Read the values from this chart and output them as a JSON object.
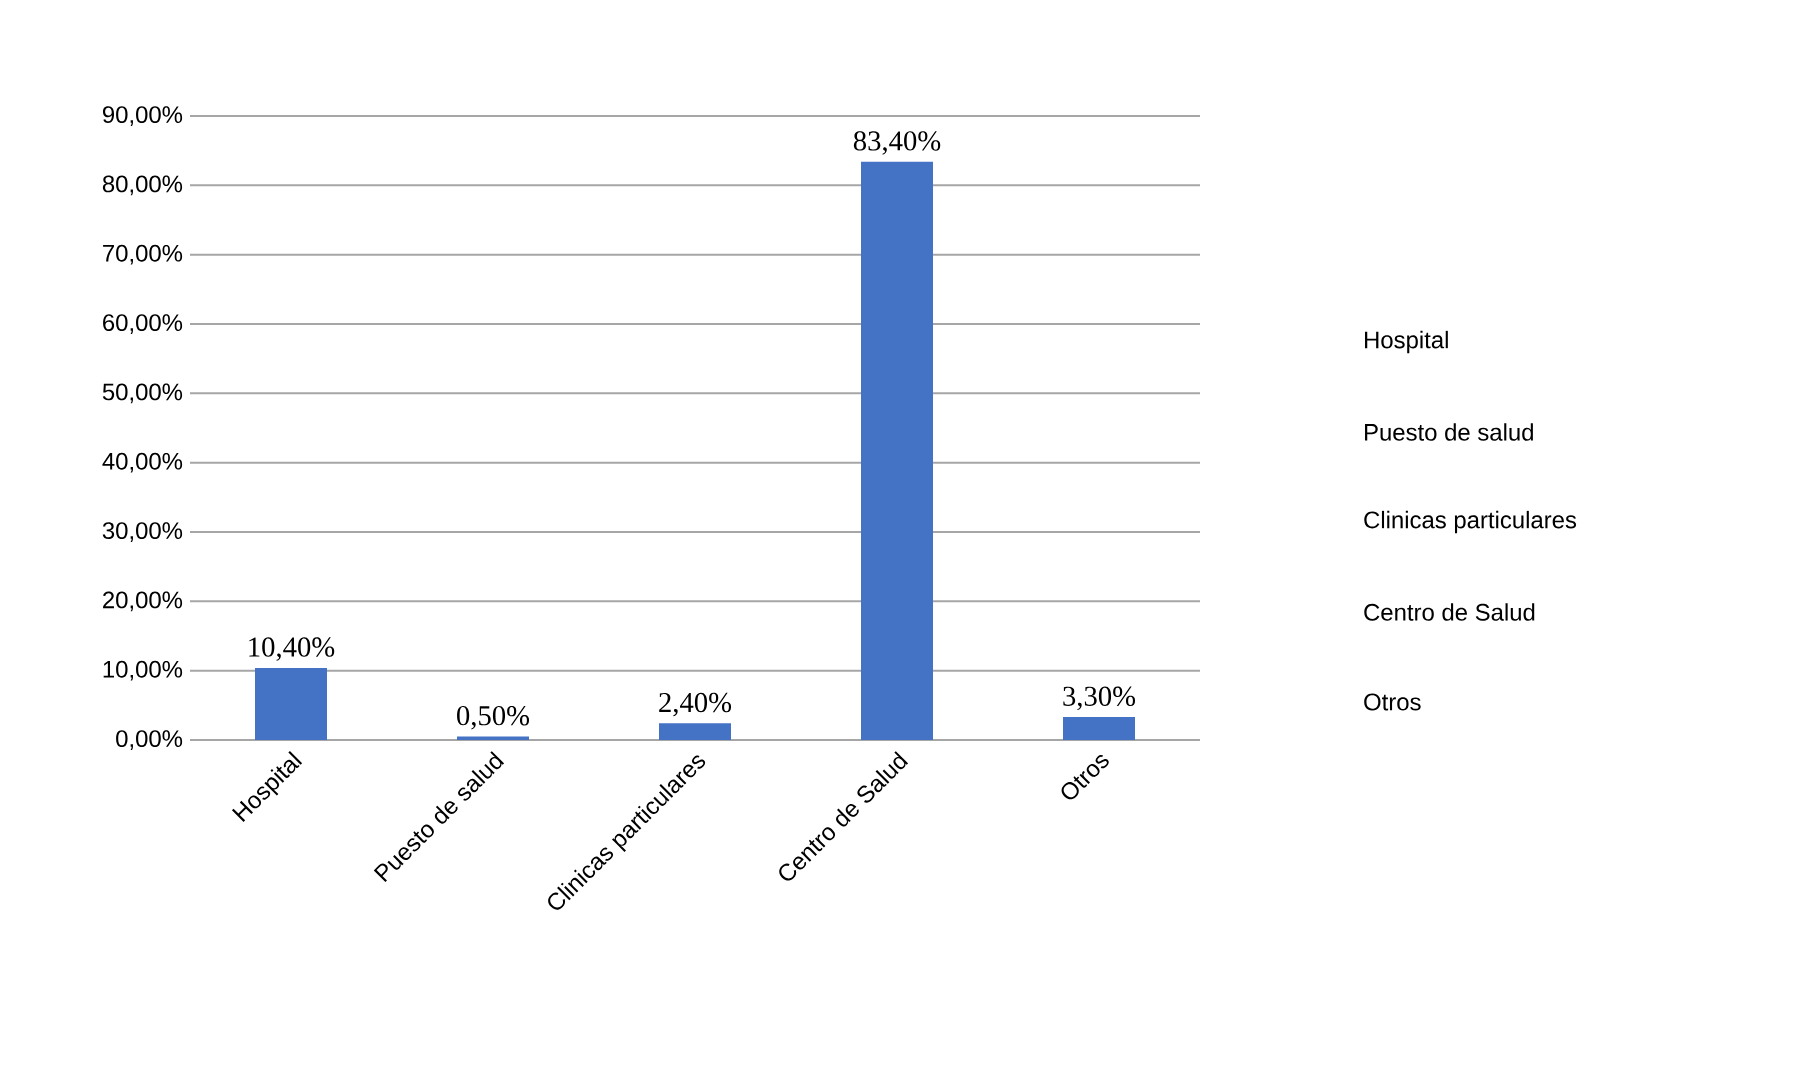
{
  "chart_data": {
    "type": "bar",
    "categories": [
      "Hospital",
      "Puesto de salud",
      "Clinicas particulares",
      "Centro de Salud",
      "Otros"
    ],
    "values": [
      10.4,
      0.5,
      2.4,
      83.4,
      3.3
    ],
    "value_labels": [
      "10,40%",
      "0,50%",
      "2,40%",
      "83,40%",
      "3,30%"
    ],
    "colors": [
      "#4472c4",
      "#4472c4",
      "#4472c4",
      "#4472c4",
      "#4472c4"
    ],
    "ylim": [
      0,
      90
    ],
    "yticks": [
      {
        "value": 0,
        "label": "0,00%"
      },
      {
        "value": 10,
        "label": "10,00%"
      },
      {
        "value": 20,
        "label": "20,00%"
      },
      {
        "value": 30,
        "label": "30,00%"
      },
      {
        "value": 40,
        "label": "40,00%"
      },
      {
        "value": 50,
        "label": "50,00%"
      },
      {
        "value": 60,
        "label": "60,00%"
      },
      {
        "value": 70,
        "label": "70,00%"
      },
      {
        "value": 80,
        "label": "80,00%"
      },
      {
        "value": 90,
        "label": "90,00%"
      }
    ],
    "grid": "y"
  }
}
